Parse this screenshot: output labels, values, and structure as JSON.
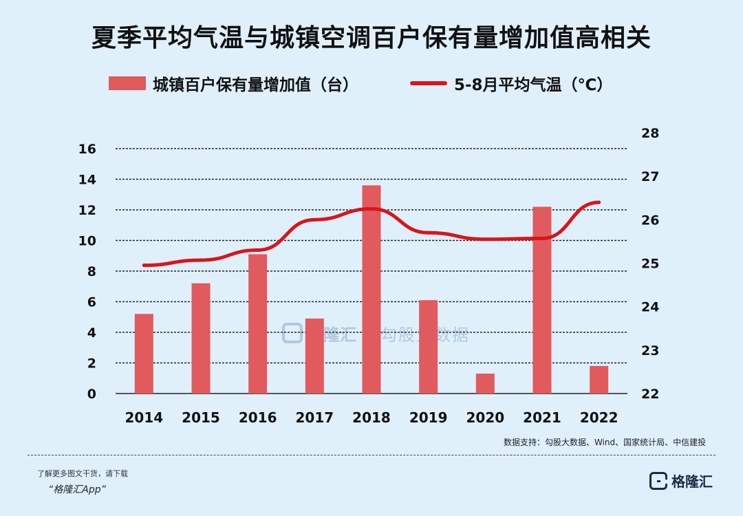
{
  "title": "夏季平均气温与城镇空调百户保有量增加值高相关",
  "legend": {
    "bar_label": "城镇百户保有量增加值（台）",
    "line_label": "5-8月平均气温（℃）"
  },
  "source": "数据支持：勾股大数据、Wind、国家统计局、中信建投",
  "footer": {
    "tip": "了解更多图文干货，请下载",
    "app": "“格隆汇App”",
    "brand": "格隆汇"
  },
  "watermark": {
    "brand": "格隆汇",
    "text": "勾股大数据"
  },
  "colors": {
    "bar": "#e05a5e",
    "line": "#d9151b",
    "background": "#dff0fb"
  },
  "chart_data": {
    "type": "bar",
    "categories": [
      "2014",
      "2015",
      "2016",
      "2017",
      "2018",
      "2019",
      "2020",
      "2021",
      "2022"
    ],
    "series": [
      {
        "name": "城镇百户保有量增加值（台）",
        "type": "bar",
        "axis": "left",
        "values": [
          5.2,
          7.2,
          9.1,
          4.9,
          13.6,
          6.1,
          1.3,
          12.2,
          1.8
        ]
      },
      {
        "name": "5-8月平均气温（℃）",
        "type": "line",
        "axis": "right",
        "values": [
          24.95,
          25.07,
          25.3,
          26.0,
          26.25,
          25.7,
          25.55,
          25.57,
          26.4
        ]
      }
    ],
    "ylim": [
      0,
      16
    ],
    "yticks": [
      0,
      2,
      4,
      6,
      8,
      10,
      12,
      14,
      16
    ],
    "y2lim": [
      22,
      28
    ],
    "y2ticks": [
      22,
      23,
      24,
      25,
      26,
      27,
      28
    ],
    "grid": true,
    "legend_position": "top"
  }
}
